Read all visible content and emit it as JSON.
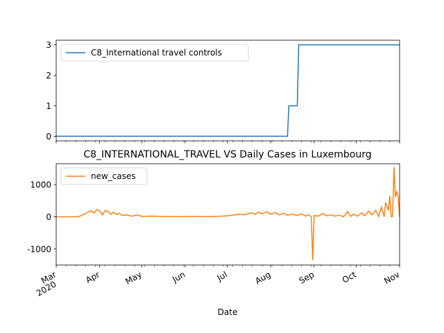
{
  "chart_data": [
    {
      "type": "line",
      "title": "",
      "xlabel": "",
      "ylabel": "",
      "ylim": [
        -0.15,
        3.15
      ],
      "yticks": [
        0,
        1,
        2,
        3
      ],
      "grid": false,
      "legend_position": "upper-left",
      "series": [
        {
          "name": "C8_International travel controls",
          "color": "#1f77b4",
          "points": [
            [
              "2020-03-01",
              0
            ],
            [
              "2020-08-13",
              0
            ],
            [
              "2020-08-14",
              1
            ],
            [
              "2020-08-20",
              1
            ],
            [
              "2020-08-21",
              3
            ],
            [
              "2020-11-01",
              3
            ]
          ]
        }
      ]
    },
    {
      "type": "line",
      "title": "C8_INTERNATIONAL_TRAVEL VS Daily Cases in Luxembourg",
      "xlabel": "Date",
      "ylabel": "",
      "ylim": [
        -1500,
        1650
      ],
      "yticks": [
        -1000,
        0,
        1000
      ],
      "grid": false,
      "legend_position": "upper-left",
      "series": [
        {
          "name": "new_cases",
          "color": "#ff7f0e",
          "points": [
            [
              "2020-03-01",
              0
            ],
            [
              "2020-03-10",
              0
            ],
            [
              "2020-03-15",
              2
            ],
            [
              "2020-03-18",
              20
            ],
            [
              "2020-03-21",
              80
            ],
            [
              "2020-03-24",
              150
            ],
            [
              "2020-03-26",
              190
            ],
            [
              "2020-03-28",
              120
            ],
            [
              "2020-03-30",
              220
            ],
            [
              "2020-04-01",
              190
            ],
            [
              "2020-04-03",
              60
            ],
            [
              "2020-04-05",
              200
            ],
            [
              "2020-04-07",
              160
            ],
            [
              "2020-04-09",
              80
            ],
            [
              "2020-04-11",
              140
            ],
            [
              "2020-04-13",
              70
            ],
            [
              "2020-04-15",
              110
            ],
            [
              "2020-04-17",
              40
            ],
            [
              "2020-04-20",
              60
            ],
            [
              "2020-04-24",
              20
            ],
            [
              "2020-04-28",
              60
            ],
            [
              "2020-05-01",
              10
            ],
            [
              "2020-05-08",
              20
            ],
            [
              "2020-05-15",
              10
            ],
            [
              "2020-05-25",
              5
            ],
            [
              "2020-06-05",
              10
            ],
            [
              "2020-06-15",
              5
            ],
            [
              "2020-06-25",
              15
            ],
            [
              "2020-07-01",
              30
            ],
            [
              "2020-07-05",
              50
            ],
            [
              "2020-07-10",
              80
            ],
            [
              "2020-07-13",
              60
            ],
            [
              "2020-07-16",
              100
            ],
            [
              "2020-07-19",
              120
            ],
            [
              "2020-07-21",
              70
            ],
            [
              "2020-07-23",
              140
            ],
            [
              "2020-07-26",
              90
            ],
            [
              "2020-07-29",
              160
            ],
            [
              "2020-08-01",
              80
            ],
            [
              "2020-08-04",
              130
            ],
            [
              "2020-08-07",
              60
            ],
            [
              "2020-08-10",
              110
            ],
            [
              "2020-08-13",
              50
            ],
            [
              "2020-08-16",
              80
            ],
            [
              "2020-08-20",
              40
            ],
            [
              "2020-08-23",
              90
            ],
            [
              "2020-08-26",
              20
            ],
            [
              "2020-08-28",
              70
            ],
            [
              "2020-08-30",
              0
            ],
            [
              "2020-08-31",
              -1350
            ],
            [
              "2020-09-01",
              40
            ],
            [
              "2020-09-04",
              20
            ],
            [
              "2020-09-07",
              100
            ],
            [
              "2020-09-10",
              30
            ],
            [
              "2020-09-13",
              60
            ],
            [
              "2020-09-16",
              20
            ],
            [
              "2020-09-19",
              50
            ],
            [
              "2020-09-22",
              0
            ],
            [
              "2020-09-25",
              160
            ],
            [
              "2020-09-27",
              10
            ],
            [
              "2020-09-29",
              80
            ],
            [
              "2020-10-02",
              20
            ],
            [
              "2020-10-05",
              120
            ],
            [
              "2020-10-07",
              30
            ],
            [
              "2020-10-10",
              180
            ],
            [
              "2020-10-12",
              60
            ],
            [
              "2020-10-15",
              200
            ],
            [
              "2020-10-17",
              10
            ],
            [
              "2020-10-19",
              300
            ],
            [
              "2020-10-21",
              0
            ],
            [
              "2020-10-22",
              450
            ],
            [
              "2020-10-24",
              200
            ],
            [
              "2020-10-25",
              650
            ],
            [
              "2020-10-26",
              0
            ],
            [
              "2020-10-27",
              10
            ],
            [
              "2020-10-28",
              1550
            ],
            [
              "2020-10-29",
              600
            ],
            [
              "2020-10-30",
              800
            ],
            [
              "2020-10-31",
              600
            ],
            [
              "2020-11-01",
              0
            ]
          ]
        }
      ]
    }
  ],
  "x_axis": {
    "range": [
      "2020-03-01",
      "2020-11-01"
    ],
    "tick_labels": [
      {
        "date": "2020-03-01",
        "label": "Mar",
        "sublabel": "2020"
      },
      {
        "date": "2020-04-01",
        "label": "Apr"
      },
      {
        "date": "2020-05-01",
        "label": "May"
      },
      {
        "date": "2020-06-01",
        "label": "Jun"
      },
      {
        "date": "2020-07-01",
        "label": "Jul"
      },
      {
        "date": "2020-08-01",
        "label": "Aug"
      },
      {
        "date": "2020-09-01",
        "label": "Sep"
      },
      {
        "date": "2020-10-01",
        "label": "Oct"
      },
      {
        "date": "2020-11-01",
        "label": "Nov"
      }
    ],
    "minor_tick_unit": "week"
  }
}
